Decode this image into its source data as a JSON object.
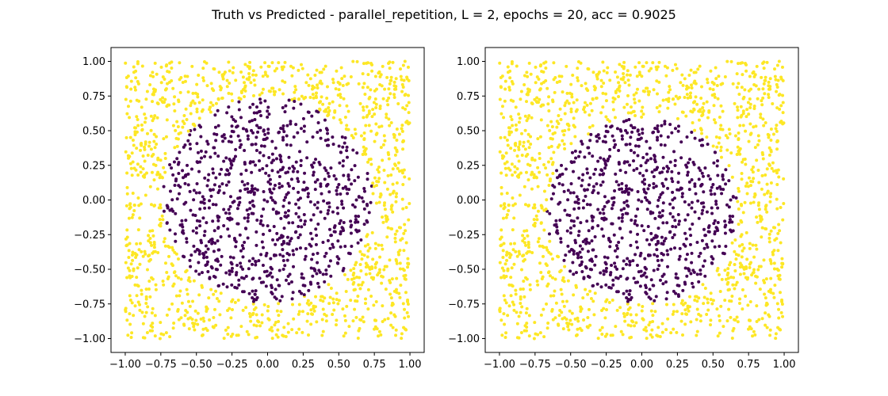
{
  "figure": {
    "suptitle": "Truth vs Predicted - parallel_repetition, L = 2, epochs = 20, acc = 0.9025"
  },
  "colors": {
    "inside": "#440154",
    "outside": "#fde725",
    "frame": "#000000",
    "background": "#ffffff"
  },
  "chart_data": [
    {
      "type": "scatter",
      "panel": "truth",
      "title": "",
      "xlabel": "",
      "ylabel": "",
      "xlim": [
        -1.1,
        1.1
      ],
      "ylim": [
        -1.1,
        1.1
      ],
      "grid": false,
      "xticks": [
        -1.0,
        -0.75,
        -0.5,
        -0.25,
        0.0,
        0.25,
        0.5,
        0.75,
        1.0
      ],
      "yticks": [
        -1.0,
        -0.75,
        -0.5,
        -0.25,
        0.0,
        0.25,
        0.5,
        0.75,
        1.0
      ],
      "xtick_labels": [
        "−1.00",
        "−0.75",
        "−0.50",
        "−0.25",
        "0.00",
        "0.25",
        "0.50",
        "0.75",
        "1.00"
      ],
      "ytick_labels": [
        "−1.00",
        "−0.75",
        "−0.50",
        "−0.25",
        "0.00",
        "0.25",
        "0.50",
        "0.75",
        "1.00"
      ],
      "points_per_class_estimate": {
        "inside": 720,
        "outside": 1280
      },
      "decision_region": {
        "shape": "circle",
        "center": [
          0.0,
          0.0
        ],
        "radius": 0.74
      },
      "classes": [
        "inside (dark purple)",
        "outside (yellow)"
      ]
    },
    {
      "type": "scatter",
      "panel": "predicted",
      "title": "",
      "xlabel": "",
      "ylabel": "",
      "xlim": [
        -1.1,
        1.1
      ],
      "ylim": [
        -1.1,
        1.1
      ],
      "grid": false,
      "xticks": [
        -1.0,
        -0.75,
        -0.5,
        -0.25,
        0.0,
        0.25,
        0.5,
        0.75,
        1.0
      ],
      "yticks": [
        -1.0,
        -0.75,
        -0.5,
        -0.25,
        0.0,
        0.25,
        0.5,
        0.75,
        1.0
      ],
      "xtick_labels": [
        "−1.00",
        "−0.75",
        "−0.50",
        "−0.25",
        "0.00",
        "0.25",
        "0.50",
        "0.75",
        "1.00"
      ],
      "ytick_labels": [
        "−1.00",
        "−0.75",
        "−0.50",
        "−0.25",
        "0.00",
        "0.25",
        "0.50",
        "0.75",
        "1.00"
      ],
      "points_per_class_estimate": {
        "inside": 560,
        "outside": 1440
      },
      "decision_region": {
        "shape": "circle",
        "center": [
          0.0,
          -0.08
        ],
        "radius": 0.67
      },
      "classes": [
        "inside (dark purple)",
        "outside (yellow)"
      ]
    }
  ]
}
